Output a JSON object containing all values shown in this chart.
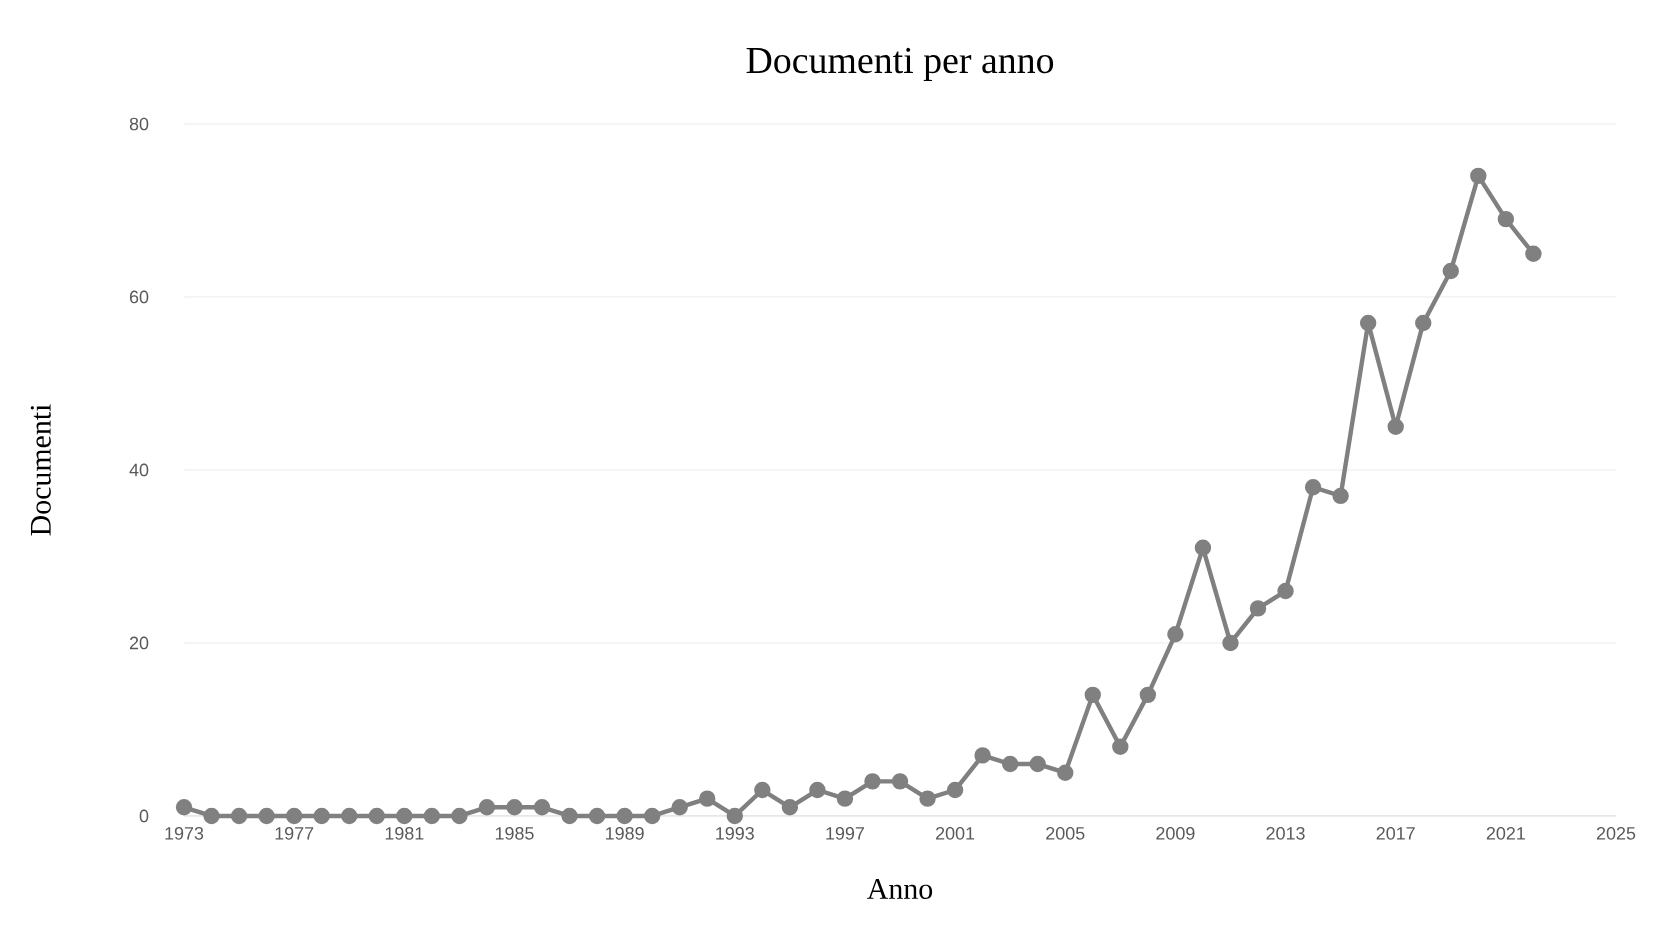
{
  "chart_data": {
    "type": "line",
    "title": "Documenti per anno",
    "xlabel": "Anno",
    "ylabel": "Documenti",
    "x": [
      1973,
      1974,
      1975,
      1976,
      1977,
      1978,
      1979,
      1980,
      1981,
      1982,
      1983,
      1984,
      1985,
      1986,
      1987,
      1988,
      1989,
      1990,
      1991,
      1992,
      1993,
      1994,
      1995,
      1996,
      1997,
      1998,
      1999,
      2000,
      2001,
      2002,
      2003,
      2004,
      2005,
      2006,
      2007,
      2008,
      2009,
      2010,
      2011,
      2012,
      2013,
      2014,
      2015,
      2016,
      2017,
      2018,
      2019,
      2020,
      2021,
      2022
    ],
    "series": [
      {
        "color": "#808080",
        "values": [
          1,
          0,
          0,
          0,
          0,
          0,
          0,
          0,
          0,
          0,
          0,
          1,
          1,
          1,
          0,
          0,
          0,
          0,
          1,
          2,
          0,
          3,
          1,
          3,
          2,
          4,
          4,
          2,
          3,
          7,
          6,
          6,
          5,
          14,
          8,
          14,
          21,
          31,
          20,
          24,
          26,
          38,
          37,
          57,
          45,
          57,
          63,
          74,
          69,
          65
        ]
      }
    ],
    "xlim": [
      1973,
      2025
    ],
    "xticks": [
      1973,
      1977,
      1981,
      1985,
      1989,
      1993,
      1997,
      2001,
      2005,
      2009,
      2013,
      2017,
      2021,
      2025
    ],
    "ylim": [
      0,
      80
    ],
    "yticks": [
      0,
      20,
      40,
      60,
      80
    ],
    "grid": "y",
    "marker": "circle",
    "line_style": "solid"
  }
}
